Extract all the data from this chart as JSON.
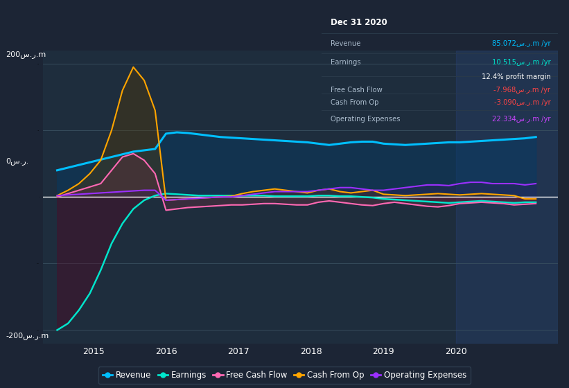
{
  "bg_color": "#1c2535",
  "chart_bg": "#1e2d3d",
  "ylabel_top": "200س.ر.m",
  "ylabel_zero": "0س.ر.",
  "ylabel_bot": "-200س.ر.m",
  "ylim": [
    -220,
    220
  ],
  "xlim": [
    2014.3,
    2021.4
  ],
  "xticks": [
    2015,
    2016,
    2017,
    2018,
    2019,
    2020
  ],
  "info_box": {
    "title": "Dec 31 2020",
    "rows": [
      {
        "label": "Revenue",
        "value": "85.072س.ر.m /yr",
        "color": "#00bfff"
      },
      {
        "label": "Earnings",
        "value": "10.515س.ر.m /yr",
        "color": "#00e5cc"
      },
      {
        "label": "",
        "value": "12.4% profit margin",
        "color": "#ffffff"
      },
      {
        "label": "Free Cash Flow",
        "value": "-7.968س.ر.m /yr",
        "color": "#ff4444"
      },
      {
        "label": "Cash From Op",
        "value": "-3.090س.ر.m /yr",
        "color": "#ff4444"
      },
      {
        "label": "Operating Expenses",
        "value": "22.334س.ر.m /yr",
        "color": "#cc44ff"
      }
    ]
  },
  "legend": [
    {
      "label": "Revenue",
      "color": "#00bfff"
    },
    {
      "label": "Earnings",
      "color": "#00e5cc"
    },
    {
      "label": "Free Cash Flow",
      "color": "#ff69b4"
    },
    {
      "label": "Cash From Op",
      "color": "#ffa500"
    },
    {
      "label": "Operating Expenses",
      "color": "#9b30ff"
    }
  ],
  "highlight_x_start": 2020.0,
  "highlight_x_end": 2021.4
}
